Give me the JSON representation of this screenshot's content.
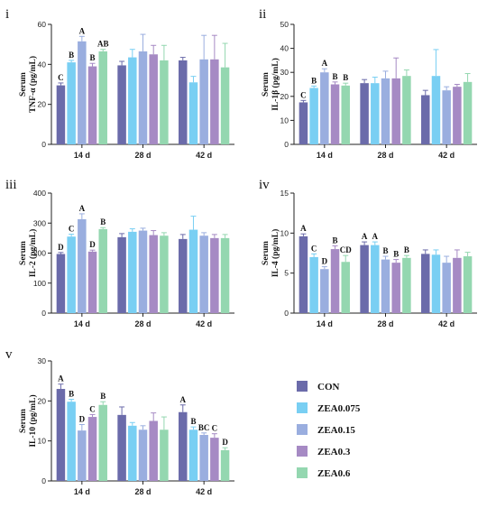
{
  "legend": [
    {
      "name": "CON",
      "color": "#6b6baa"
    },
    {
      "name": "ZEA0.075",
      "color": "#79cff3"
    },
    {
      "name": "ZEA0.15",
      "color": "#9aaedf"
    },
    {
      "name": "ZEA0.3",
      "color": "#a68ac4"
    },
    {
      "name": "ZEA0.6",
      "color": "#94d7b0"
    }
  ],
  "chart_data": [
    {
      "type": "bar",
      "panel": "i",
      "ylabel": [
        "Serum",
        "TNF-α (pg/mL)"
      ],
      "categories": [
        "14 d",
        "28 d",
        "42 d"
      ],
      "ylim": [
        0,
        60
      ],
      "yticks": [
        "0",
        "20",
        "40",
        "60"
      ],
      "series": [
        {
          "name": "CON",
          "values": [
            29.5,
            39.5,
            42.0
          ],
          "errors": [
            1.2,
            2.0,
            1.5
          ],
          "sig": [
            "C",
            "",
            ""
          ]
        },
        {
          "name": "ZEA0.075",
          "values": [
            41.0,
            43.5,
            31.0
          ],
          "errors": [
            1.0,
            4.0,
            3.0
          ],
          "sig": [
            "B",
            "",
            ""
          ]
        },
        {
          "name": "ZEA0.15",
          "values": [
            51.5,
            46.5,
            42.5
          ],
          "errors": [
            2.5,
            8.5,
            12.0
          ],
          "sig": [
            "A",
            "",
            ""
          ]
        },
        {
          "name": "ZEA0.3",
          "values": [
            39.0,
            45.0,
            42.5
          ],
          "errors": [
            1.5,
            4.5,
            12.0
          ],
          "sig": [
            "B",
            "",
            ""
          ]
        },
        {
          "name": "ZEA0.6",
          "values": [
            46.5,
            42.0,
            38.5
          ],
          "errors": [
            1.0,
            7.5,
            12.0
          ],
          "sig": [
            "AB",
            "",
            ""
          ]
        }
      ]
    },
    {
      "type": "bar",
      "panel": "ii",
      "ylabel": [
        "Serum",
        "IL-1β (pg/mL)"
      ],
      "categories": [
        "14 d",
        "28 d",
        "42 d"
      ],
      "ylim": [
        0,
        50
      ],
      "yticks": [
        "0",
        "10",
        "20",
        "30",
        "40",
        "50"
      ],
      "series": [
        {
          "name": "CON",
          "values": [
            17.5,
            25.5,
            20.5
          ],
          "errors": [
            0.8,
            1.5,
            2.0
          ],
          "sig": [
            "C",
            "",
            ""
          ]
        },
        {
          "name": "ZEA0.075",
          "values": [
            23.5,
            25.5,
            28.5
          ],
          "errors": [
            0.8,
            2.5,
            11.0
          ],
          "sig": [
            "B",
            "",
            ""
          ]
        },
        {
          "name": "ZEA0.15",
          "values": [
            30.0,
            27.5,
            22.5
          ],
          "errors": [
            1.5,
            3.0,
            1.5
          ],
          "sig": [
            "A",
            "",
            ""
          ]
        },
        {
          "name": "ZEA0.3",
          "values": [
            25.0,
            27.5,
            24.0
          ],
          "errors": [
            1.0,
            8.5,
            1.0
          ],
          "sig": [
            "B",
            "",
            ""
          ]
        },
        {
          "name": "ZEA0.6",
          "values": [
            24.5,
            28.5,
            26.0
          ],
          "errors": [
            1.0,
            2.5,
            3.5
          ],
          "sig": [
            "B",
            "",
            ""
          ]
        }
      ]
    },
    {
      "type": "bar",
      "panel": "iii",
      "ylabel": [
        "Serum",
        "IL-2 (pg/mL)"
      ],
      "categories": [
        "14 d",
        "28 d",
        "42 d"
      ],
      "ylim": [
        0,
        400
      ],
      "yticks": [
        "0",
        "100",
        "200",
        "300",
        "400"
      ],
      "series": [
        {
          "name": "CON",
          "values": [
            197,
            253,
            247
          ],
          "errors": [
            5,
            12,
            15
          ],
          "sig": [
            "D",
            "",
            ""
          ]
        },
        {
          "name": "ZEA0.075",
          "values": [
            255,
            271,
            278
          ],
          "errors": [
            8,
            10,
            45
          ],
          "sig": [
            "C",
            "",
            ""
          ]
        },
        {
          "name": "ZEA0.15",
          "values": [
            313,
            275,
            258
          ],
          "errors": [
            18,
            8,
            10
          ],
          "sig": [
            "A",
            "",
            ""
          ]
        },
        {
          "name": "ZEA0.3",
          "values": [
            205,
            260,
            250
          ],
          "errors": [
            5,
            15,
            12
          ],
          "sig": [
            "D",
            "",
            ""
          ]
        },
        {
          "name": "ZEA0.6",
          "values": [
            280,
            258,
            250
          ],
          "errors": [
            5,
            10,
            12
          ],
          "sig": [
            "B",
            "",
            ""
          ]
        }
      ]
    },
    {
      "type": "bar",
      "panel": "iv",
      "ylabel": [
        "Serum",
        "IL-4 (pg/mL)"
      ],
      "categories": [
        "14 d",
        "28 d",
        "42 d"
      ],
      "ylim": [
        0,
        15
      ],
      "yticks": [
        "0",
        "5",
        "10",
        "15"
      ],
      "series": [
        {
          "name": "CON",
          "values": [
            9.6,
            8.5,
            7.4
          ],
          "errors": [
            0.3,
            0.4,
            0.5
          ],
          "sig": [
            "A",
            "A",
            ""
          ]
        },
        {
          "name": "ZEA0.075",
          "values": [
            7.0,
            8.5,
            7.3
          ],
          "errors": [
            0.4,
            0.4,
            0.6
          ],
          "sig": [
            "C",
            "A",
            ""
          ]
        },
        {
          "name": "ZEA0.15",
          "values": [
            5.5,
            6.7,
            6.3
          ],
          "errors": [
            0.3,
            0.4,
            0.8
          ],
          "sig": [
            "D",
            "B",
            ""
          ]
        },
        {
          "name": "ZEA0.3",
          "values": [
            8.0,
            6.3,
            6.9
          ],
          "errors": [
            0.4,
            0.4,
            1.0
          ],
          "sig": [
            "B",
            "B",
            ""
          ]
        },
        {
          "name": "ZEA0.6",
          "values": [
            6.4,
            6.9,
            7.1
          ],
          "errors": [
            0.8,
            0.3,
            0.5
          ],
          "sig": [
            "CD",
            "B",
            ""
          ]
        }
      ]
    },
    {
      "type": "bar",
      "panel": "v",
      "ylabel": [
        "Serum",
        "IL-10 (pg/mL)"
      ],
      "categories": [
        "14 d",
        "28 d",
        "42 d"
      ],
      "ylim": [
        0,
        30
      ],
      "yticks": [
        "0",
        "10",
        "20",
        "30"
      ],
      "series": [
        {
          "name": "CON",
          "values": [
            23.0,
            16.5,
            17.2
          ],
          "errors": [
            1.2,
            2.0,
            1.8
          ],
          "sig": [
            "A",
            "",
            "A"
          ]
        },
        {
          "name": "ZEA0.075",
          "values": [
            19.8,
            13.8,
            12.8
          ],
          "errors": [
            0.6,
            0.8,
            0.7
          ],
          "sig": [
            "B",
            "",
            "B"
          ]
        },
        {
          "name": "ZEA0.15",
          "values": [
            12.6,
            12.8,
            11.5
          ],
          "errors": [
            1.5,
            1.0,
            0.5
          ],
          "sig": [
            "D",
            "",
            "BC"
          ]
        },
        {
          "name": "ZEA0.3",
          "values": [
            16.0,
            15.0,
            10.8
          ],
          "errors": [
            0.6,
            2.0,
            1.0
          ],
          "sig": [
            "C",
            "",
            "C"
          ]
        },
        {
          "name": "ZEA0.6",
          "values": [
            19.0,
            12.8,
            7.7
          ],
          "errors": [
            0.8,
            3.2,
            0.6
          ],
          "sig": [
            "B",
            "",
            "D"
          ]
        }
      ]
    }
  ]
}
